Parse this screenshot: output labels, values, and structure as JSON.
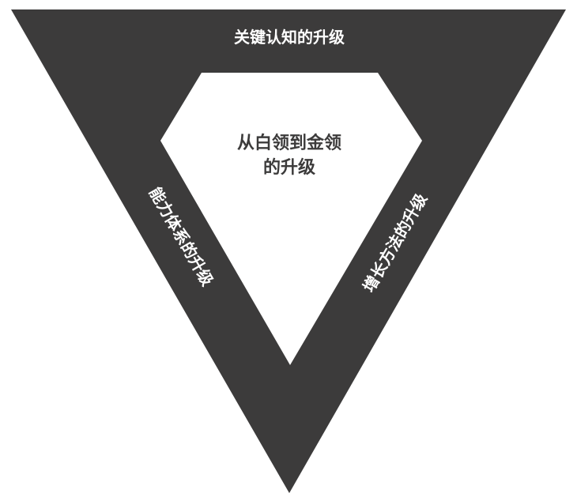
{
  "diagram": {
    "labels": {
      "top": "关键认知的升级",
      "left": "能力体系的升级",
      "right": "增长方法的升级",
      "center_line1": "从白领到金领",
      "center_line2": "的升级"
    },
    "colors": {
      "background": "#ffffff",
      "triangle": "#3c3b3b",
      "diamond": "#ffffff",
      "side_text": "#ffffff",
      "center_text": "#3c3b3b"
    }
  }
}
